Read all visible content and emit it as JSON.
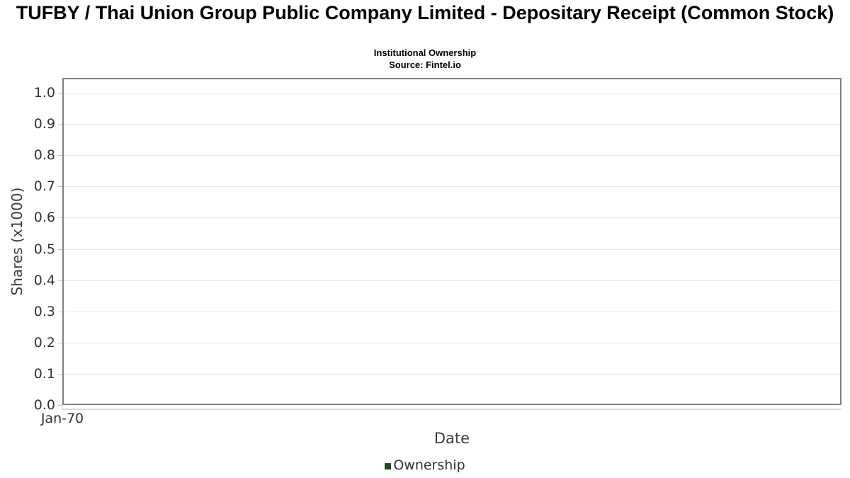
{
  "chart_data": {
    "type": "line",
    "title": "TUFBY / Thai Union Group Public Company Limited - Depositary Receipt (Common Stock)",
    "subtitle": "Institutional Ownership",
    "source": "Source: Fintel.io",
    "xlabel": "Date",
    "ylabel": "Shares (x1000)",
    "x_ticks": [
      "Jan-70"
    ],
    "y_ticks": [
      0.0,
      0.1,
      0.2,
      0.3,
      0.4,
      0.5,
      0.6,
      0.7,
      0.8,
      0.9,
      1.0
    ],
    "ylim": [
      0.0,
      1.05
    ],
    "grid": true,
    "legend_position": "bottom",
    "series": [
      {
        "name": "Ownership",
        "color": "#1e4b28",
        "x": [],
        "values": []
      }
    ]
  },
  "colors": {
    "series_green": "#1e4b28",
    "grid": "#e6e6e6",
    "plot_border": "#808080",
    "axis_line": "#d9d9d9",
    "tick_mark": "#c9c9c9",
    "tick_text": "#333333",
    "title_text": "#000000"
  }
}
